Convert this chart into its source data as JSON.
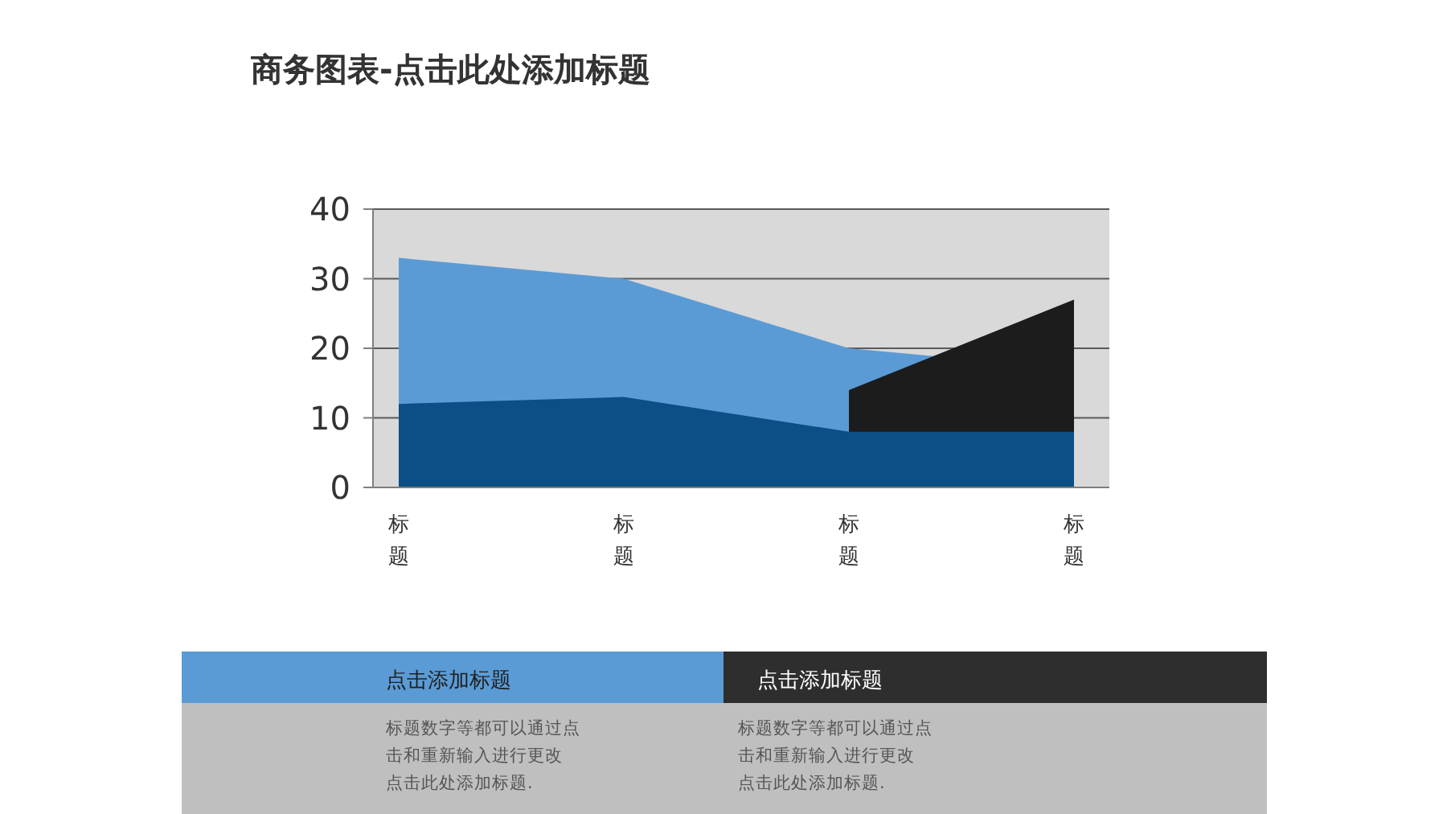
{
  "chart_data": {
    "type": "area",
    "title": "商务图表-点击此处添加标题",
    "categories": [
      "标题",
      "标题",
      "标题",
      "标题"
    ],
    "series": [
      {
        "color": "#5b9bd5",
        "values": [
          33,
          30,
          20,
          17
        ]
      },
      {
        "color": "#1c1c1c",
        "values": [
          null,
          null,
          14,
          27
        ]
      },
      {
        "color": "#0b4f86",
        "values": [
          12,
          13,
          8,
          8
        ]
      }
    ],
    "ylim": [
      0,
      40
    ],
    "yticks": [
      0,
      10,
      20,
      30,
      40
    ],
    "grid": "y",
    "annotations": [
      "点击添加标题",
      "标题数字等都可以通过点击和重新输入进行更改",
      "点击此处添加标题.",
      "点击添加标题",
      "标题数字等都可以通过点击和重新输入进行更改",
      "点击此处添加标题."
    ]
  }
}
